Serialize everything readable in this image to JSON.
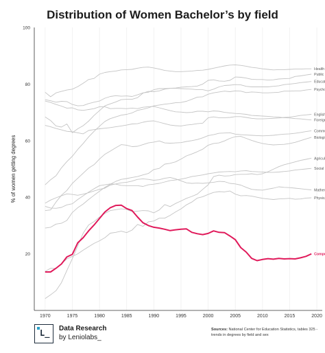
{
  "chart_data": {
    "type": "line",
    "title": "Distribution of Women Bachelor’s by field",
    "ylabel": "% of women getting degrees",
    "xlabel": "",
    "xlim": [
      1968,
      2021
    ],
    "ylim": [
      0,
      100
    ],
    "x_ticks": [
      "1970",
      "1975",
      "1980",
      "1985",
      "1990",
      "1995",
      "2000",
      "2005",
      "2010",
      "2015",
      "2020"
    ],
    "y_ticks": [
      "20",
      "40",
      "60",
      "80",
      "100"
    ],
    "grid": "vertical",
    "legend": "direct labels at right end of lines",
    "highlight_color": "#e0195a",
    "line_color": "#c4c4c4",
    "x": [
      1970,
      1971,
      1972,
      1973,
      1974,
      1975,
      1976,
      1977,
      1978,
      1979,
      1980,
      1981,
      1982,
      1983,
      1984,
      1985,
      1986,
      1987,
      1988,
      1989,
      1990,
      1991,
      1992,
      1993,
      1994,
      1995,
      1996,
      1997,
      1998,
      1999,
      2000,
      2001,
      2002,
      2003,
      2004,
      2005,
      2006,
      2007,
      2008,
      2009,
      2010,
      2011,
      2012,
      2013,
      2014,
      2015,
      2016,
      2017,
      2018,
      2019
    ],
    "series": [
      {
        "name": "Health professions",
        "highlight": false,
        "values": [
          77.1,
          75.5,
          76.9,
          77.4,
          77.9,
          78.2,
          79.1,
          80.3,
          81.6,
          82.0,
          83.5,
          84.1,
          84.4,
          84.6,
          85.0,
          85.1,
          85.2,
          85.6,
          85.9,
          86.0,
          85.7,
          85.3,
          84.8,
          84.6,
          84.4,
          84.4,
          84.5,
          84.6,
          84.8,
          84.9,
          85.2,
          85.6,
          86.0,
          86.4,
          86.7,
          86.8,
          86.6,
          86.3,
          85.9,
          85.7,
          85.4,
          85.2,
          85.0,
          85.1,
          85.1,
          85.2,
          85.3,
          85.3,
          85.4,
          85.4
        ]
      },
      {
        "name": "Public administration & social services",
        "highlight": false,
        "values": [
          68.4,
          67.1,
          65.2,
          64.8,
          65.9,
          62.8,
          64.2,
          65.3,
          66.9,
          68.9,
          70.6,
          72.3,
          73.0,
          73.7,
          74.5,
          74.6,
          74.6,
          75.2,
          76.8,
          77.4,
          77.3,
          77.6,
          78.2,
          78.5,
          78.6,
          78.9,
          79.0,
          79.1,
          79.3,
          80.0,
          81.3,
          81.5,
          81.1,
          81.0,
          81.3,
          82.5,
          82.4,
          82.1,
          81.7,
          81.6,
          81.6,
          81.4,
          81.5,
          81.8,
          81.9,
          82.0,
          82.7,
          82.9,
          83.2,
          83.5
        ]
      },
      {
        "name": "Education",
        "highlight": false,
        "values": [
          74.5,
          74.1,
          73.6,
          73.9,
          73.8,
          72.8,
          72.3,
          72.4,
          73.1,
          73.6,
          74.0,
          75.0,
          75.6,
          75.9,
          75.7,
          75.8,
          75.6,
          76.2,
          76.9,
          77.1,
          78.0,
          78.4,
          78.4,
          78.5,
          78.5,
          78.4,
          78.3,
          78.2,
          78.0,
          78.0,
          77.6,
          78.2,
          79.0,
          79.5,
          79.6,
          79.8,
          79.7,
          79.2,
          79.0,
          79.0,
          79.0,
          79.0,
          79.2,
          79.4,
          79.8,
          80.0,
          80.2,
          80.5,
          80.7,
          80.9
        ]
      },
      {
        "name": "Psychology",
        "highlight": false,
        "values": [
          44.4,
          46.2,
          47.6,
          50.4,
          52.6,
          54.5,
          56.9,
          59.0,
          61.3,
          63.3,
          65.1,
          66.8,
          67.8,
          68.4,
          69.0,
          69.3,
          69.8,
          70.7,
          71.1,
          71.6,
          72.3,
          72.6,
          72.9,
          73.1,
          73.4,
          73.5,
          73.9,
          74.6,
          75.4,
          75.5,
          76.4,
          76.9,
          77.2,
          77.5,
          77.3,
          77.6,
          77.5,
          77.0,
          77.2,
          77.1,
          76.9,
          76.9,
          77.0,
          77.1,
          77.5,
          77.5,
          77.6,
          77.6,
          77.9,
          78.1
        ]
      },
      {
        "name": "English language and literature/letters",
        "highlight": false,
        "values": [
          65.4,
          64.9,
          64.3,
          63.8,
          63.3,
          63.1,
          62.8,
          62.4,
          63.6,
          63.9,
          64.2,
          64.4,
          64.6,
          64.9,
          65.2,
          65.5,
          65.9,
          66.0,
          66.5,
          66.9,
          67.0,
          66.5,
          66.0,
          65.5,
          65.3,
          65.2,
          65.5,
          65.7,
          66.0,
          66.2,
          68.1,
          68.4,
          68.1,
          68.1,
          68.2,
          68.5,
          68.5,
          68.2,
          67.9,
          67.7,
          67.7,
          67.8,
          67.9,
          68.0,
          68.2,
          68.3,
          68.6,
          68.9,
          69.1,
          69.3
        ]
      },
      {
        "name": "Foreign languages and literatures",
        "highlight": false,
        "values": [
          74.0,
          73.5,
          72.8,
          72.2,
          71.5,
          71.6,
          70.9,
          70.7,
          71.0,
          71.3,
          72.0,
          72.0,
          71.3,
          71.4,
          71.4,
          71.3,
          71.5,
          71.3,
          71.8,
          72.0,
          72.1,
          71.6,
          71.1,
          70.6,
          70.2,
          70.1,
          69.9,
          70.0,
          70.4,
          70.4,
          70.2,
          70.5,
          70.4,
          70.0,
          69.8,
          69.6,
          69.5,
          69.3,
          68.9,
          68.8,
          68.7,
          68.6,
          68.4,
          68.3,
          68.1,
          68.0,
          67.8,
          67.7,
          67.5,
          67.3
        ]
      },
      {
        "name": "Communication, Journalism",
        "highlight": false,
        "values": [
          35.3,
          35.5,
          38.3,
          40.7,
          42.4,
          44.9,
          46.7,
          48.5,
          50.3,
          51.5,
          53.5,
          55.2,
          56.3,
          57.5,
          58.6,
          58.4,
          57.9,
          58.0,
          58.6,
          59.2,
          59.5,
          59.9,
          59.2,
          59.1,
          59.2,
          59.3,
          59.7,
          60.0,
          60.4,
          61.0,
          61.8,
          62.1,
          62.6,
          62.7,
          62.8,
          62.3,
          62.1,
          62.0,
          61.9,
          61.8,
          61.7,
          61.8,
          61.9,
          62.1,
          62.3,
          62.4,
          62.6,
          62.9,
          63.2,
          63.5
        ]
      },
      {
        "name": "Biological and biomedical sciences",
        "highlight": false,
        "values": [
          29.1,
          29.4,
          30.5,
          30.8,
          31.8,
          34.6,
          36.3,
          37.6,
          39.2,
          40.7,
          42.1,
          43.5,
          44.6,
          45.6,
          46.3,
          46.6,
          47.0,
          47.3,
          47.9,
          48.4,
          49.8,
          50.2,
          51.7,
          52.0,
          52.5,
          53.5,
          54.6,
          55.3,
          56.1,
          57.0,
          58.4,
          59.0,
          59.2,
          59.9,
          60.8,
          61.4,
          61.5,
          60.8,
          60.1,
          59.5,
          59.0,
          58.7,
          58.5,
          58.6,
          58.7,
          59.0,
          59.4,
          60.0,
          60.6,
          61.2
        ]
      },
      {
        "name": "Agriculture and natural resources",
        "highlight": false,
        "values": [
          4.2,
          5.5,
          7.0,
          9.8,
          14.1,
          18.3,
          22.8,
          27.3,
          30.2,
          31.4,
          33.0,
          34.3,
          35.3,
          35.6,
          35.9,
          35.7,
          34.9,
          35.1,
          35.3,
          35.2,
          34.5,
          35.5,
          37.4,
          36.7,
          37.8,
          38.7,
          39.6,
          40.3,
          41.1,
          42.8,
          44.4,
          47.3,
          47.8,
          47.5,
          47.6,
          48.0,
          48.1,
          48.1,
          48.3,
          48.0,
          48.3,
          49.0,
          49.9,
          50.8,
          51.5,
          52.0,
          52.5,
          53.0,
          53.4,
          53.8
        ]
      },
      {
        "name": "Social sciences and history",
        "highlight": false,
        "values": [
          36.8,
          36.2,
          36.1,
          36.4,
          37.3,
          37.7,
          39.2,
          40.5,
          41.8,
          43.0,
          44.1,
          44.4,
          44.7,
          44.6,
          44.2,
          44.1,
          44.1,
          44.1,
          43.8,
          44.4,
          44.6,
          44.9,
          45.4,
          45.9,
          46.1,
          46.4,
          46.8,
          47.3,
          47.6,
          47.9,
          48.3,
          48.6,
          48.9,
          49.0,
          49.1,
          49.0,
          49.3,
          49.4,
          49.1,
          49.0,
          48.9,
          48.8,
          48.8,
          48.9,
          49.1,
          49.3,
          49.6,
          49.8,
          50.0,
          50.2
        ]
      },
      {
        "name": "Mathematics and statistics",
        "highlight": false,
        "values": [
          37.9,
          39.0,
          39.8,
          40.5,
          41.2,
          41.0,
          40.7,
          41.1,
          41.6,
          42.2,
          42.8,
          43.2,
          44.3,
          44.7,
          45.1,
          45.3,
          45.7,
          46.3,
          46.5,
          46.3,
          46.0,
          46.2,
          46.7,
          47.0,
          46.5,
          45.8,
          45.1,
          44.9,
          45.0,
          44.9,
          45.1,
          45.3,
          45.6,
          45.5,
          44.9,
          44.7,
          44.3,
          43.5,
          42.8,
          42.6,
          42.5,
          42.9,
          43.2,
          43.7,
          43.5,
          43.4,
          43.2,
          43.0,
          42.8,
          42.6
        ]
      },
      {
        "name": "Physical sciences",
        "highlight": false,
        "values": [
          13.8,
          14.9,
          14.8,
          16.5,
          18.2,
          19.1,
          20.0,
          21.3,
          22.5,
          23.7,
          24.6,
          25.7,
          27.3,
          27.6,
          28.0,
          27.5,
          28.4,
          30.4,
          29.7,
          31.3,
          31.6,
          32.6,
          32.6,
          33.6,
          34.8,
          35.9,
          37.3,
          38.3,
          39.7,
          40.2,
          41.0,
          41.7,
          42.0,
          41.9,
          42.2,
          41.1,
          40.5,
          40.6,
          40.4,
          40.0,
          39.6,
          39.4,
          39.2,
          39.4,
          39.5,
          39.6,
          39.3,
          39.4,
          39.7,
          39.8
        ]
      },
      {
        "name": "Computer and Information Science",
        "highlight": true,
        "values": [
          13.6,
          13.6,
          14.9,
          16.4,
          18.9,
          19.8,
          23.9,
          25.7,
          28.1,
          30.2,
          32.5,
          34.8,
          36.3,
          37.1,
          37.2,
          36.0,
          35.3,
          33.0,
          31.0,
          30.0,
          29.4,
          29.1,
          28.7,
          28.2,
          28.5,
          28.7,
          28.8,
          27.6,
          27.1,
          26.8,
          27.2,
          28.1,
          27.6,
          27.5,
          26.3,
          25.0,
          22.2,
          20.6,
          18.4,
          17.6,
          18.0,
          18.3,
          18.1,
          18.4,
          18.2,
          18.3,
          18.2,
          18.6,
          19.1,
          20.0
        ]
      }
    ]
  },
  "footer": {
    "brand_line1": "Data Research",
    "brand_line2": "by Leniolabs_",
    "logo_mark": "L_",
    "sources_label": "Sources:",
    "sources_text": "National Center for Education Statistics, tables 325 - trends in degrees by field and sex"
  }
}
